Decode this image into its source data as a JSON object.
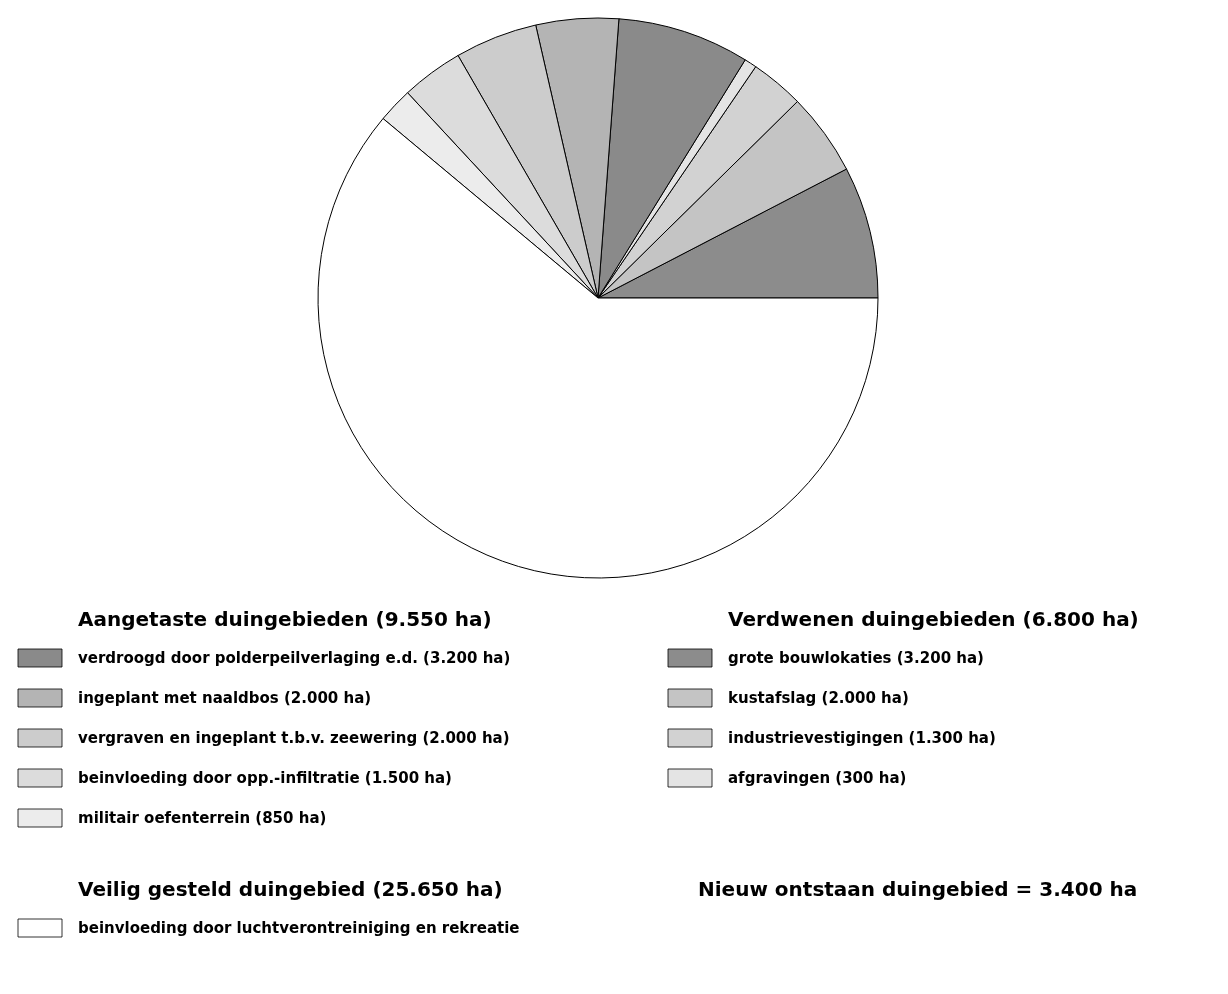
{
  "chart_data": {
    "type": "pie",
    "categories": [
      "grote bouwlokaties (3.200 ha)",
      "kustafslag (2.000 ha)",
      "industrievestigingen (1.300 ha)",
      "afgravingen (300 ha)",
      "verdroogd door polderpeilverlaging e.d. (3.200 ha)",
      "ingeplant met naaldbos (2.000 ha)",
      "vergraven en ingeplant t.b.v. zeewering (2.000 ha)",
      "beinvloeding door opp.-infiltratie (1.500 ha)",
      "militair oefenterrein (850 ha)",
      "beinvloeding door luchtverontreiniging en rekreatie"
    ],
    "values": [
      3200,
      2000,
      1300,
      300,
      3200,
      2000,
      2000,
      1500,
      850,
      25650
    ],
    "colors": [
      "#8c8c8c",
      "#c4c4c4",
      "#d2d2d2",
      "#e4e4e4",
      "#8a8a8a",
      "#b4b4b4",
      "#cccccc",
      "#dcdcdc",
      "#ececec",
      "#ffffff"
    ],
    "annotations": [
      "Aangetaste duingebieden (9.550 ha)",
      "Verdwenen duingebieden (6.800 ha)",
      "Veilig gesteld duingebied (25.650 ha)",
      "Nieuw ontstaan duingebied = 3.400 ha"
    ],
    "legend": "bottom"
  }
}
